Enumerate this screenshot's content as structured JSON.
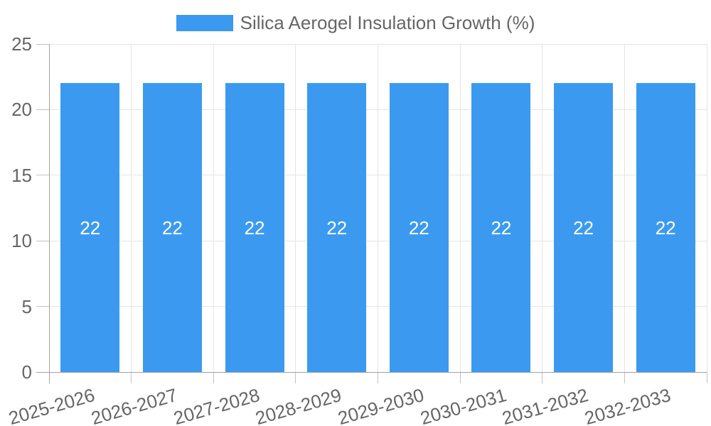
{
  "chart_data": {
    "type": "bar",
    "title": "",
    "legend": {
      "label": "Silica Aerogel Insulation Growth (%)",
      "position": "top"
    },
    "categories": [
      "2025-2026",
      "2026-2027",
      "2027-2028",
      "2028-2029",
      "2029-2030",
      "2030-2031",
      "2031-2032",
      "2032-2033"
    ],
    "values": [
      22,
      22,
      22,
      22,
      22,
      22,
      22,
      22
    ],
    "bar_value_labels": [
      "22",
      "22",
      "22",
      "22",
      "22",
      "22",
      "22",
      "22"
    ],
    "xlabel": "",
    "ylabel": "",
    "ylim": [
      0,
      25
    ],
    "yticks": [
      0,
      5,
      10,
      15,
      20,
      25
    ],
    "grid": true,
    "legend_position": "top",
    "colors": {
      "bar": "#3b9af0",
      "bar_label": "#ffffff",
      "text": "#666666",
      "grid": "#e5e5e5",
      "axis": "#a3a3a3",
      "tick": "#c2c2c2",
      "background": "#ffffff"
    }
  }
}
